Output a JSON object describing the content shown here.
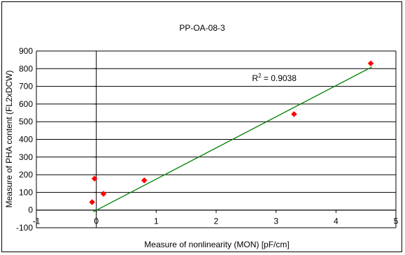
{
  "chart_data": {
    "type": "scatter",
    "title": "PP-OA-08-3",
    "xlabel": "Measure of nonlinearity (MON) [pF/cm]",
    "ylabel": "Measure of PHA content (FL2xDCW)",
    "xlim": [
      -1,
      5
    ],
    "ylim": [
      -100,
      900
    ],
    "x_ticks": [
      "-1",
      "0",
      "1",
      "2",
      "3",
      "4",
      "5"
    ],
    "y_ticks": [
      "-100",
      "0",
      "100",
      "200",
      "300",
      "400",
      "500",
      "600",
      "700",
      "800",
      "900"
    ],
    "grid": {
      "horizontal": true,
      "vertical": false
    },
    "points": [
      {
        "x": -0.07,
        "y": 45
      },
      {
        "x": -0.03,
        "y": 178
      },
      {
        "x": 0.12,
        "y": 92
      },
      {
        "x": 0.8,
        "y": 168
      },
      {
        "x": 3.3,
        "y": 543
      },
      {
        "x": 4.58,
        "y": 830
      }
    ],
    "trendline": {
      "x0": -0.05,
      "y0": -10,
      "x1": 4.6,
      "y1": 810
    },
    "annotation": {
      "r2_label": "R",
      "r2_sup": "2",
      "r2_value": " = 0.9038",
      "x": 2.6,
      "y": 730
    },
    "colors": {
      "marker": "#ff0000",
      "trendline": "#008000",
      "grid": "#000000"
    }
  }
}
